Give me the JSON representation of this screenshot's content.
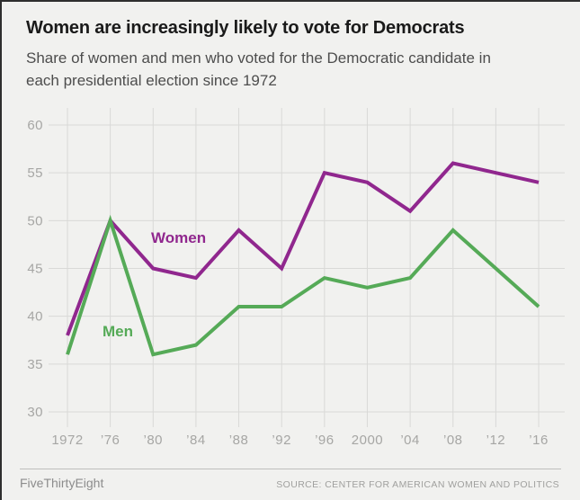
{
  "header": {
    "title": "Women are increasingly likely to vote for Democrats",
    "subtitle": "Share of women and men who voted for the Democratic candidate in each presidential election since 1972",
    "subtitle_lines": [
      "Share of women and men who voted for the Democratic candidate in",
      "each presidential election since 1972"
    ]
  },
  "footer": {
    "brand": "FiveThirtyEight",
    "source": "SOURCE: CENTER FOR AMERICAN WOMEN AND POLITICS"
  },
  "colors": {
    "women_line": "#90278e",
    "men_line": "#55aa57",
    "background": "#f1f1ef",
    "gridline": "#d9d9d7",
    "tick_label": "#a6a6a4"
  },
  "chart_data": {
    "type": "line",
    "title": "Women are increasingly likely to vote for Democrats",
    "subtitle": "Share of women and men who voted for the Democratic candidate in each presidential election since 1972",
    "categories": [
      "1972",
      "’76",
      "’80",
      "’84",
      "’88",
      "’92",
      "’96",
      "2000",
      "’04",
      "’08",
      "’12",
      "’16"
    ],
    "series": [
      {
        "name": "Women",
        "color": "#90278e",
        "values": [
          38,
          50,
          45,
          44,
          49,
          45,
          55,
          54,
          51,
          56,
          55,
          54
        ]
      },
      {
        "name": "Men",
        "color": "#55aa57",
        "values": [
          36,
          50,
          36,
          37,
          41,
          41,
          44,
          43,
          44,
          49,
          45,
          41
        ]
      }
    ],
    "ylim": [
      30,
      60
    ],
    "yticks": [
      30,
      35,
      40,
      45,
      50,
      55,
      60
    ],
    "xlabel": "",
    "ylabel": "",
    "grid": true,
    "legend": "inline-labels-on-plot"
  }
}
